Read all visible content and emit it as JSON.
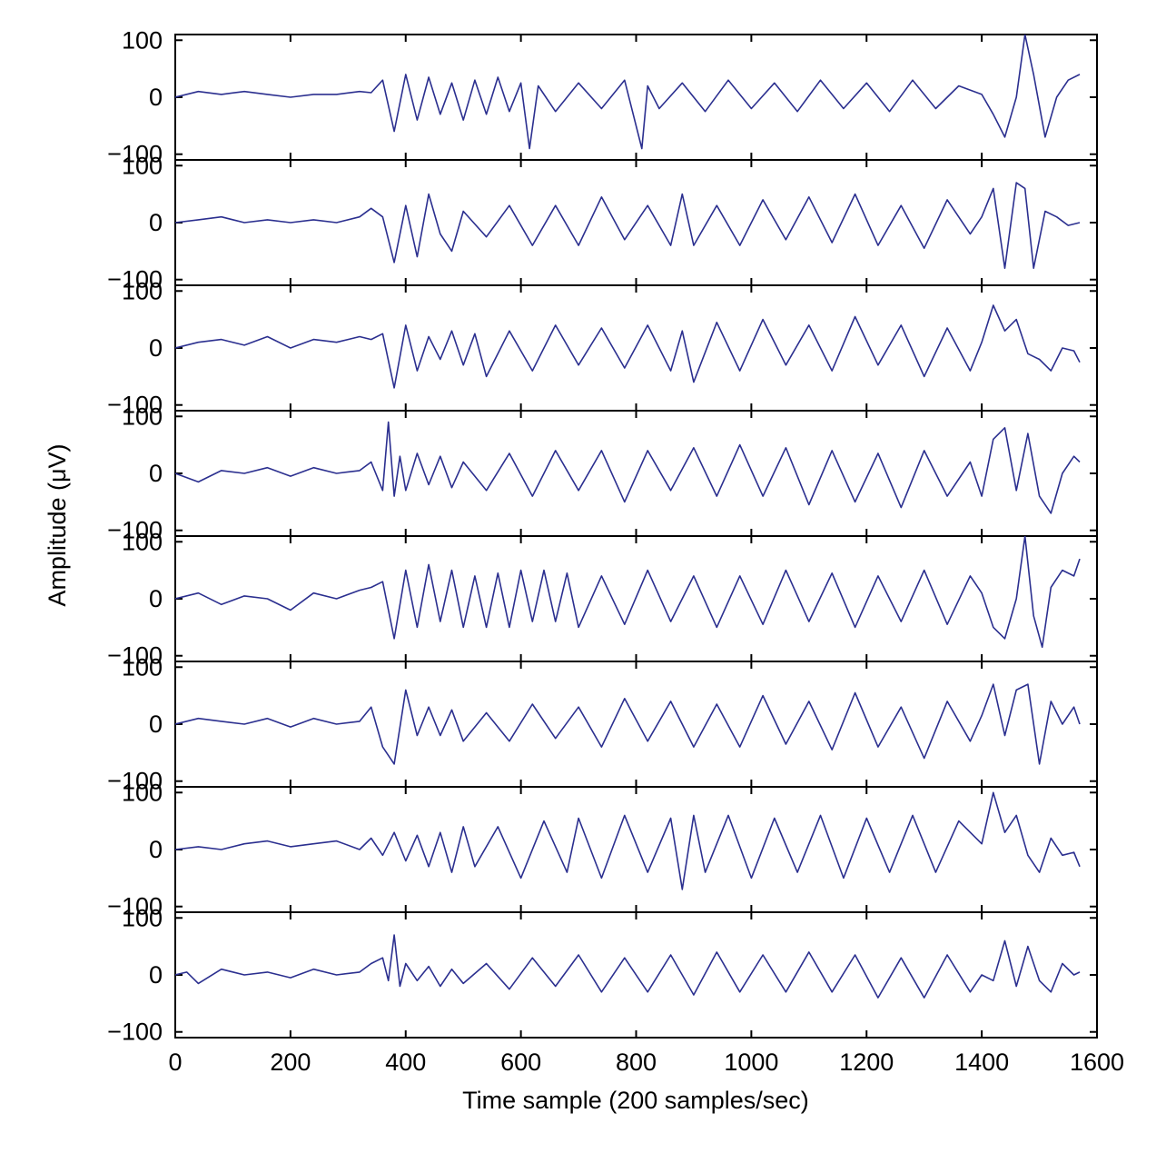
{
  "chart_data": {
    "type": "line",
    "xlabel": "Time sample (200 samples/sec)",
    "ylabel": "Amplitude (μV)",
    "xlim": [
      0,
      1600
    ],
    "ylim": [
      -110,
      110
    ],
    "xticks": [
      0,
      200,
      400,
      600,
      800,
      1000,
      1200,
      1400,
      1600
    ],
    "yticks": [
      100,
      0,
      -100
    ],
    "ytick_labels": [
      "100",
      "0",
      "−100"
    ],
    "grid": false,
    "line_color": "#2b2f8f",
    "series": [
      {
        "x": [
          0,
          40,
          80,
          120,
          160,
          200,
          240,
          280,
          320,
          340,
          360,
          380,
          400,
          420,
          440,
          460,
          480,
          500,
          520,
          540,
          560,
          580,
          600,
          615,
          630,
          660,
          700,
          740,
          780,
          810,
          820,
          840,
          880,
          920,
          960,
          1000,
          1040,
          1080,
          1120,
          1160,
          1200,
          1240,
          1280,
          1320,
          1360,
          1400,
          1420,
          1440,
          1460,
          1475,
          1490,
          1510,
          1530,
          1550,
          1570
        ],
        "y": [
          0,
          10,
          5,
          10,
          5,
          0,
          5,
          5,
          10,
          8,
          30,
          -60,
          40,
          -40,
          35,
          -30,
          25,
          -40,
          30,
          -30,
          35,
          -25,
          25,
          -90,
          20,
          -25,
          25,
          -20,
          30,
          -90,
          20,
          -20,
          25,
          -25,
          30,
          -20,
          25,
          -25,
          30,
          -20,
          25,
          -25,
          30,
          -20,
          20,
          5,
          -30,
          -70,
          0,
          110,
          40,
          -70,
          0,
          30,
          40
        ]
      },
      {
        "x": [
          0,
          40,
          80,
          120,
          160,
          200,
          240,
          280,
          320,
          340,
          360,
          380,
          400,
          420,
          440,
          460,
          480,
          500,
          540,
          580,
          620,
          660,
          700,
          740,
          780,
          820,
          860,
          880,
          900,
          940,
          980,
          1020,
          1060,
          1100,
          1140,
          1180,
          1220,
          1260,
          1300,
          1340,
          1380,
          1400,
          1420,
          1440,
          1460,
          1475,
          1490,
          1510,
          1530,
          1550,
          1570
        ],
        "y": [
          0,
          5,
          10,
          0,
          5,
          0,
          5,
          0,
          10,
          25,
          10,
          -70,
          30,
          -60,
          50,
          -20,
          -50,
          20,
          -25,
          30,
          -40,
          30,
          -40,
          45,
          -30,
          30,
          -40,
          50,
          -40,
          30,
          -40,
          40,
          -30,
          45,
          -35,
          50,
          -40,
          30,
          -45,
          40,
          -20,
          10,
          60,
          -80,
          70,
          60,
          -80,
          20,
          10,
          -5,
          0
        ]
      },
      {
        "x": [
          0,
          40,
          80,
          120,
          160,
          200,
          240,
          280,
          320,
          340,
          360,
          380,
          400,
          420,
          440,
          460,
          480,
          500,
          520,
          540,
          580,
          620,
          660,
          700,
          740,
          780,
          820,
          860,
          880,
          900,
          940,
          980,
          1020,
          1060,
          1100,
          1140,
          1180,
          1220,
          1260,
          1300,
          1340,
          1380,
          1400,
          1420,
          1440,
          1460,
          1480,
          1500,
          1520,
          1540,
          1560,
          1570
        ],
        "y": [
          0,
          10,
          15,
          5,
          20,
          0,
          15,
          10,
          20,
          15,
          25,
          -70,
          40,
          -40,
          20,
          -20,
          30,
          -30,
          25,
          -50,
          30,
          -40,
          40,
          -30,
          35,
          -35,
          40,
          -40,
          30,
          -60,
          45,
          -40,
          50,
          -30,
          40,
          -40,
          55,
          -30,
          40,
          -50,
          35,
          -40,
          10,
          75,
          30,
          50,
          -10,
          -20,
          -40,
          0,
          -5,
          -25
        ]
      },
      {
        "x": [
          0,
          40,
          80,
          120,
          160,
          200,
          240,
          280,
          320,
          340,
          360,
          370,
          380,
          390,
          400,
          420,
          440,
          460,
          480,
          500,
          540,
          580,
          620,
          660,
          700,
          740,
          780,
          820,
          860,
          900,
          940,
          980,
          1020,
          1060,
          1100,
          1140,
          1180,
          1220,
          1260,
          1300,
          1340,
          1380,
          1400,
          1420,
          1440,
          1460,
          1480,
          1500,
          1520,
          1540,
          1560,
          1570
        ],
        "y": [
          0,
          -15,
          5,
          0,
          10,
          -5,
          10,
          0,
          5,
          20,
          -30,
          90,
          -40,
          30,
          -30,
          35,
          -20,
          30,
          -25,
          20,
          -30,
          35,
          -40,
          40,
          -30,
          40,
          -50,
          40,
          -30,
          45,
          -40,
          50,
          -40,
          45,
          -55,
          40,
          -50,
          35,
          -60,
          40,
          -40,
          20,
          -40,
          60,
          80,
          -30,
          70,
          -40,
          -70,
          0,
          30,
          20
        ]
      },
      {
        "x": [
          0,
          40,
          80,
          120,
          160,
          200,
          240,
          280,
          320,
          340,
          360,
          380,
          400,
          420,
          440,
          460,
          480,
          500,
          520,
          540,
          560,
          580,
          600,
          620,
          640,
          660,
          680,
          700,
          740,
          780,
          820,
          860,
          900,
          940,
          980,
          1020,
          1060,
          1100,
          1140,
          1180,
          1220,
          1260,
          1300,
          1340,
          1380,
          1400,
          1420,
          1440,
          1460,
          1475,
          1490,
          1505,
          1520,
          1540,
          1560,
          1570
        ],
        "y": [
          0,
          10,
          -10,
          5,
          0,
          -20,
          10,
          0,
          15,
          20,
          30,
          -70,
          50,
          -50,
          60,
          -40,
          50,
          -50,
          40,
          -50,
          45,
          -50,
          50,
          -40,
          50,
          -40,
          45,
          -50,
          40,
          -45,
          50,
          -40,
          40,
          -50,
          40,
          -45,
          50,
          -40,
          45,
          -50,
          40,
          -40,
          50,
          -45,
          40,
          10,
          -50,
          -70,
          0,
          110,
          -30,
          -85,
          20,
          50,
          40,
          70
        ]
      },
      {
        "x": [
          0,
          40,
          80,
          120,
          160,
          200,
          240,
          280,
          320,
          340,
          360,
          380,
          400,
          420,
          440,
          460,
          480,
          500,
          540,
          580,
          620,
          660,
          700,
          740,
          780,
          820,
          860,
          900,
          940,
          980,
          1020,
          1060,
          1100,
          1140,
          1180,
          1220,
          1260,
          1300,
          1340,
          1380,
          1400,
          1420,
          1440,
          1460,
          1480,
          1500,
          1520,
          1540,
          1560,
          1570
        ],
        "y": [
          0,
          10,
          5,
          0,
          10,
          -5,
          10,
          0,
          5,
          30,
          -40,
          -70,
          60,
          -20,
          30,
          -20,
          25,
          -30,
          20,
          -30,
          35,
          -25,
          30,
          -40,
          45,
          -30,
          40,
          -40,
          35,
          -40,
          50,
          -35,
          40,
          -45,
          55,
          -40,
          30,
          -60,
          40,
          -30,
          15,
          70,
          -20,
          60,
          70,
          -70,
          40,
          0,
          30,
          0
        ]
      },
      {
        "x": [
          0,
          40,
          80,
          120,
          160,
          200,
          240,
          280,
          320,
          340,
          360,
          380,
          400,
          420,
          440,
          460,
          480,
          500,
          520,
          560,
          600,
          640,
          680,
          700,
          740,
          780,
          820,
          860,
          880,
          900,
          920,
          960,
          1000,
          1040,
          1080,
          1120,
          1160,
          1200,
          1240,
          1280,
          1320,
          1360,
          1400,
          1420,
          1440,
          1460,
          1480,
          1500,
          1520,
          1540,
          1560,
          1570
        ],
        "y": [
          0,
          5,
          0,
          10,
          15,
          5,
          10,
          15,
          0,
          20,
          -10,
          30,
          -20,
          25,
          -30,
          30,
          -40,
          40,
          -30,
          40,
          -50,
          50,
          -40,
          55,
          -50,
          60,
          -40,
          55,
          -70,
          60,
          -40,
          60,
          -50,
          55,
          -40,
          60,
          -50,
          55,
          -40,
          60,
          -40,
          50,
          10,
          100,
          30,
          60,
          -10,
          -40,
          20,
          -10,
          -5,
          -30
        ]
      },
      {
        "x": [
          0,
          20,
          40,
          80,
          120,
          160,
          200,
          240,
          280,
          320,
          340,
          360,
          370,
          380,
          390,
          400,
          420,
          440,
          460,
          480,
          500,
          540,
          580,
          620,
          660,
          700,
          740,
          780,
          820,
          860,
          900,
          940,
          980,
          1020,
          1060,
          1100,
          1140,
          1180,
          1220,
          1260,
          1300,
          1340,
          1380,
          1400,
          1420,
          1440,
          1460,
          1480,
          1500,
          1520,
          1540,
          1560,
          1570
        ],
        "y": [
          0,
          5,
          -15,
          10,
          0,
          5,
          -5,
          10,
          0,
          5,
          20,
          30,
          -10,
          70,
          -20,
          20,
          -10,
          15,
          -20,
          10,
          -15,
          20,
          -25,
          30,
          -20,
          35,
          -30,
          30,
          -30,
          35,
          -35,
          40,
          -30,
          35,
          -30,
          40,
          -30,
          35,
          -40,
          30,
          -40,
          35,
          -30,
          0,
          -10,
          60,
          -20,
          50,
          -10,
          -30,
          20,
          0,
          5
        ]
      }
    ]
  }
}
